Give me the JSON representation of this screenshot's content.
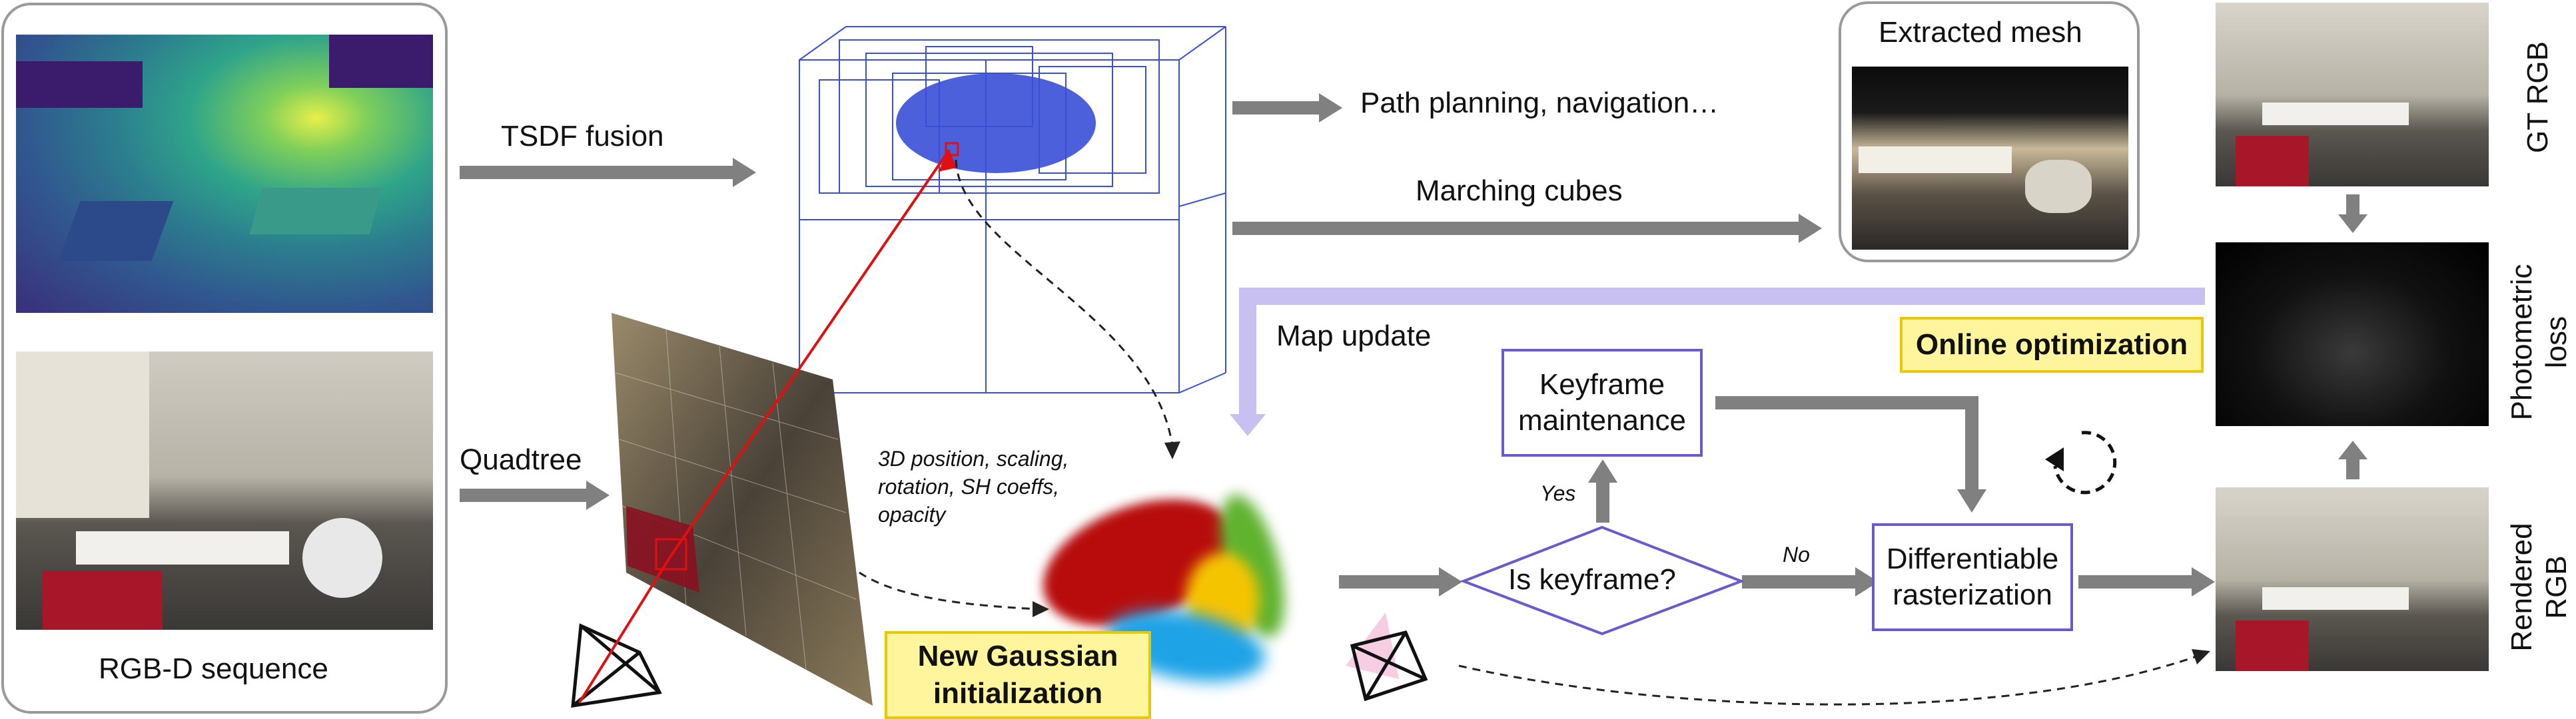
{
  "labels": {
    "tsdf_fusion": "TSDF fusion",
    "quadtree": "Quadtree",
    "rgbd_sequence": "RGB-D sequence",
    "path_planning": "Path planning, navigation…",
    "marching_cubes": "Marching cubes",
    "extracted_mesh": "Extracted mesh",
    "map_update": "Map update",
    "online_optimization": "Online optimization",
    "gaussian_attributes": "3D position, scaling, rotation, SH coeffs, opacity",
    "new_gaussian_init": "New Gaussian initialization",
    "keyframe_maintenance": "Keyframe maintenance",
    "is_keyframe": "Is keyframe?",
    "yes": "Yes",
    "no": "No",
    "differentiable_rasterization": "Differentiable rasterization",
    "gt_rgb": "GT RGB",
    "photometric_loss": "Photometric loss",
    "rendered_rgb": "Rendered RGB"
  },
  "colors": {
    "arrow_gray": "#808080",
    "map_update_purple": "#c8c0f0",
    "node_border": "#6a5acd",
    "highlight_yellow": "#fff59d",
    "octree_blue": "#3a4fd8",
    "ray_red": "#e01010"
  }
}
